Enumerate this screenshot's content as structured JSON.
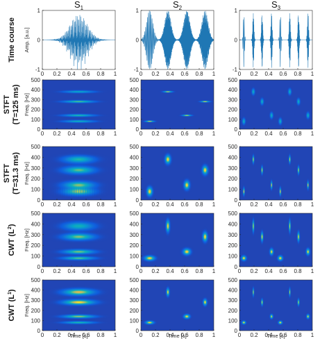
{
  "columns": [
    "S",
    "S",
    "S"
  ],
  "column_subscripts": [
    "1",
    "2",
    "3"
  ],
  "rows": [
    {
      "label": "Time course",
      "ylabel": "Amp. [a.u.]",
      "kind": "time"
    },
    {
      "label": "STFT",
      "label2": "(T=125 ms)",
      "ylabel": "Freq. [Hz]",
      "kind": "tf"
    },
    {
      "label": "STFT",
      "label2": "(T=31.3 ms)",
      "ylabel": "Freq. [Hz]",
      "kind": "tf"
    },
    {
      "label": "CWT (L",
      "sup": "2",
      "label_end": ")",
      "ylabel": "Freq. [Hz]",
      "kind": "tf"
    },
    {
      "label": "CWT (L",
      "sup": "1",
      "label_end": ")",
      "ylabel": "Freq. [Hz]",
      "kind": "tf"
    }
  ],
  "xlabel": "Time [s]",
  "chart_data": [
    {
      "type": "line",
      "row": "Time course",
      "signals": [
        "S1",
        "S2",
        "S3"
      ],
      "xlabel": "Time [s]",
      "ylabel": "Amp. [a.u.]",
      "xlim": [
        0,
        1
      ],
      "ylim": [
        -1,
        1
      ],
      "xticks": [
        "0",
        "0.2",
        "0.4",
        "0.6",
        "0.8",
        "1"
      ],
      "yticks": [
        "-1",
        "0",
        "1"
      ],
      "series_color": "#1f77b4"
    },
    {
      "type": "heatmap",
      "rows_covered": [
        "STFT (T=125 ms)",
        "STFT (T=31.3 ms)",
        "CWT (L2)",
        "CWT (L1)"
      ],
      "xlabel": "Time [s]",
      "ylabel": "Freq. [Hz]",
      "xlim": [
        0,
        1
      ],
      "ylim": [
        0,
        500
      ],
      "xticks": [
        "0",
        "0.2",
        "0.4",
        "0.6",
        "0.8",
        "1"
      ],
      "yticks": [
        "0",
        "100",
        "200",
        "300",
        "400",
        "500"
      ],
      "colormap": "parula",
      "components": {
        "S1": {
          "frequencies_hz": [
            80,
            140,
            280,
            380
          ],
          "time_span_s": [
            0.1,
            0.9
          ]
        },
        "S2": {
          "blobs": [
            [
              0.12,
              80
            ],
            [
              0.37,
              380
            ],
            [
              0.63,
              140
            ],
            [
              0.88,
              280
            ]
          ]
        },
        "S3": {
          "blobs": [
            [
              0.06,
              80
            ],
            [
              0.19,
              380
            ],
            [
              0.31,
              280
            ],
            [
              0.44,
              140
            ],
            [
              0.56,
              80
            ],
            [
              0.69,
              380
            ],
            [
              0.81,
              280
            ],
            [
              0.94,
              140
            ]
          ]
        }
      }
    }
  ]
}
